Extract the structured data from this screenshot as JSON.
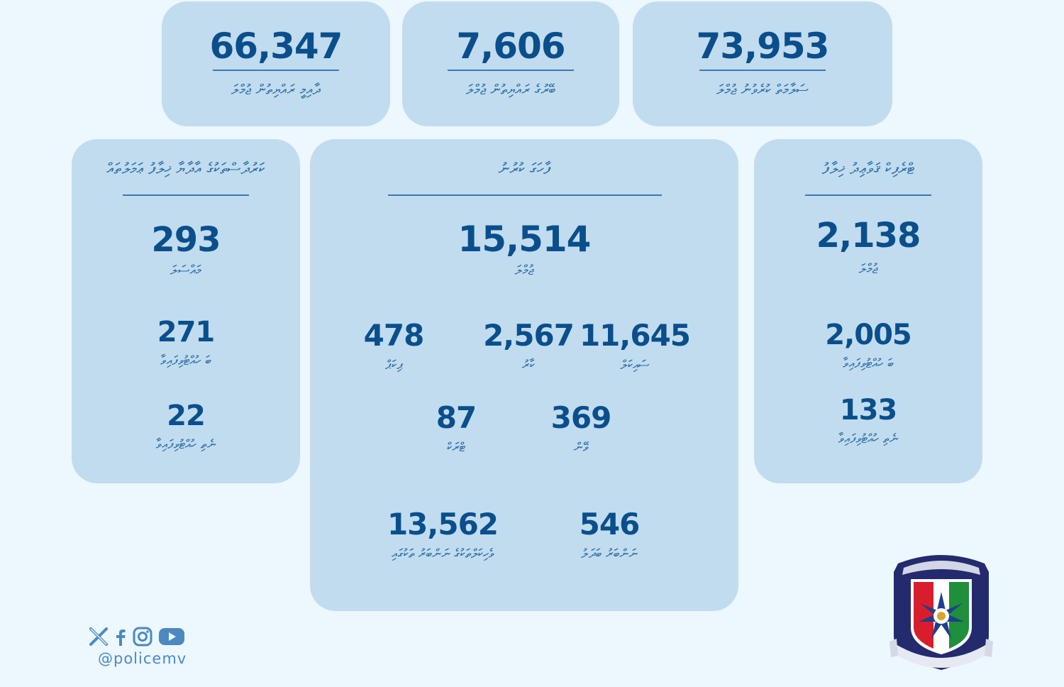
{
  "summary": {
    "residents": {
      "value": "66,347",
      "label": "ދާއިމީ ރައްޔިތުން ޖުމްލަ"
    },
    "international": {
      "value": "7,606",
      "label": "ބޭރުގެ ރައްޔިތުން ޖުމްލަ"
    },
    "total": {
      "value": "73,953",
      "label": "ސަލާމަތް ކުރެވުނު ޖުމްލަ"
    }
  },
  "left_card": {
    "heading": "ކަރުދާސްތަކުގެ އާދާޔާ ޚިލާފު ޢަމަލުތައް",
    "items": [
      {
        "value": "293",
        "label": "މައްސަލަ"
      },
      {
        "value": "271",
        "label": "ބަ ހުއްޓުވިފައިވާ"
      },
      {
        "value": "22",
        "label": "ނެތި ހުއްޓުވިފައިވާ"
      }
    ]
  },
  "middle_card": {
    "heading": "ފާހަގަ ކުރުނު",
    "main": {
      "value": "15,514",
      "label": "ޖުމްލަ"
    },
    "row1": [
      {
        "value": "478",
        "label": "ޕިކަޕް"
      },
      {
        "value": "2,567",
        "label": "ކާރު"
      },
      {
        "value": "11,645",
        "label": "ސައިކަލް"
      }
    ],
    "row2": [
      {
        "value": "87",
        "label": "ޓްރަކް"
      },
      {
        "value": "369",
        "label": "ވޭން"
      }
    ],
    "row3": [
      {
        "value": "13,562",
        "label": "ވެހިކަލްތަކުގެ ނަންބަރު ތަކުގައި"
      },
      {
        "value": "546",
        "label": "ނަންބަރު ބަދަލު"
      }
    ]
  },
  "right_card": {
    "heading": "ޓްރެފިކް ޤަވާޢިދު ޚިލާފު",
    "items": [
      {
        "value": "2,138",
        "label": "ޖުމްލަ"
      },
      {
        "value": "2,005",
        "label": "ބަ ހުއްޓުވިފައިވާ"
      },
      {
        "value": "133",
        "label": "ނެތި ހުއްޓުވިފައިވާ"
      }
    ]
  },
  "social": {
    "handle": "@policemv",
    "icons": [
      "x-icon",
      "facebook-icon",
      "instagram-icon",
      "youtube-icon"
    ]
  },
  "colors": {
    "background": "#ecf7fe",
    "card": "#c1dcef",
    "number": "#0a4f8c",
    "label": "#2a6aa3",
    "emblem_navy": "#232a6e"
  }
}
